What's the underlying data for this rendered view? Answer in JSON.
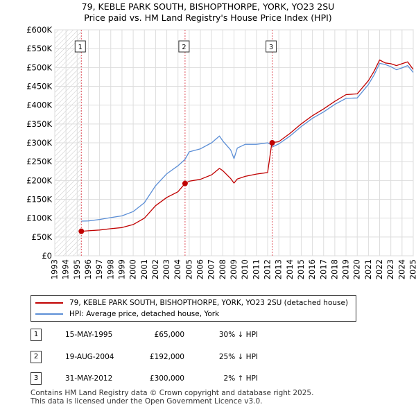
{
  "title_line1": "79, KEBLE PARK SOUTH, BISHOPTHORPE, YORK, YO23 2SU",
  "title_line2": "Price paid vs. HM Land Registry's House Price Index (HPI)",
  "colors": {
    "price_paid": "#c00000",
    "hpi": "#5b8ed6",
    "sale_marker": "#e0505a",
    "grid": "#dddddd"
  },
  "chart_data": {
    "type": "line",
    "title": "Price paid vs. HM Land Registry's House Price Index (HPI)",
    "xlabel": "",
    "ylabel": "",
    "xlim": [
      1993,
      2025
    ],
    "ylim": [
      0,
      600000
    ],
    "x_ticks": [
      1993,
      1994,
      1995,
      1996,
      1997,
      1998,
      1999,
      2000,
      2001,
      2002,
      2003,
      2004,
      2005,
      2006,
      2007,
      2008,
      2009,
      2010,
      2011,
      2012,
      2013,
      2014,
      2015,
      2016,
      2017,
      2018,
      2019,
      2020,
      2021,
      2022,
      2023,
      2024,
      2025
    ],
    "y_ticks": [
      0,
      50000,
      100000,
      150000,
      200000,
      250000,
      300000,
      350000,
      400000,
      450000,
      500000,
      550000,
      600000
    ],
    "y_tick_labels": [
      "£0",
      "£50K",
      "£100K",
      "£150K",
      "£200K",
      "£250K",
      "£300K",
      "£350K",
      "£400K",
      "£450K",
      "£500K",
      "£550K",
      "£600K"
    ],
    "hatched_region": [
      1993,
      1995.37
    ],
    "series": [
      {
        "name": "79, KEBLE PARK SOUTH, BISHOPTHORPE, YORK, YO23 2SU (detached house)",
        "x": [
          1995.37,
          1996,
          1997,
          1998,
          1999,
          2000,
          2001,
          2002,
          2003,
          2004,
          2004.63,
          2005,
          2006,
          2007,
          2007.7,
          2008,
          2008.7,
          2009,
          2009.3,
          2010,
          2011,
          2012,
          2012.38,
          2012.5,
          2013,
          2014,
          2015,
          2016,
          2017,
          2018,
          2019,
          2020,
          2021,
          2021.5,
          2022,
          2022.5,
          2023,
          2023.5,
          2024,
          2024.5,
          2025
        ],
        "values": [
          65000,
          66500,
          68500,
          72000,
          75000,
          83000,
          100000,
          133000,
          155000,
          170000,
          192000,
          198000,
          203000,
          215000,
          232000,
          226000,
          205000,
          193000,
          204000,
          211000,
          217000,
          221000,
          300000,
          301000,
          303000,
          325000,
          350000,
          372000,
          390000,
          410000,
          428000,
          430000,
          465000,
          490000,
          520000,
          512000,
          510000,
          505000,
          510000,
          515000,
          495000
        ]
      },
      {
        "name": "HPI: Average price, detached house, York",
        "x": [
          1995.37,
          1996,
          1997,
          1998,
          1999,
          2000,
          2001,
          2002,
          2003,
          2004,
          2004.63,
          2005,
          2006,
          2007,
          2007.7,
          2008,
          2008.7,
          2009,
          2009.3,
          2010,
          2011,
          2012,
          2012.38,
          2012.5,
          2013,
          2014,
          2015,
          2016,
          2017,
          2018,
          2019,
          2020,
          2021,
          2021.5,
          2022,
          2022.5,
          2023,
          2023.5,
          2024,
          2024.5,
          2025
        ],
        "values": [
          92000,
          92500,
          96500,
          101500,
          106000,
          117500,
          141000,
          186000,
          218000,
          239000,
          256000,
          276000,
          284000,
          300000,
          318000,
          305000,
          281000,
          258000,
          286000,
          296000,
          296000,
          300000,
          294000,
          290000,
          297000,
          318000,
          343000,
          365000,
          382000,
          402000,
          418000,
          419000,
          455000,
          480000,
          511000,
          508000,
          502000,
          494000,
          499000,
          505000,
          487000
        ]
      }
    ],
    "sales": [
      {
        "label": "1",
        "x": 1995.37,
        "value": 65000
      },
      {
        "label": "2",
        "x": 2004.63,
        "value": 192000
      },
      {
        "label": "3",
        "x": 2012.41,
        "value": 300000
      }
    ]
  },
  "legend": {
    "price_paid": "79, KEBLE PARK SOUTH, BISHOPTHORPE, YORK, YO23 2SU (detached house)",
    "hpi": "HPI: Average price, detached house, York"
  },
  "transactions": [
    {
      "num": "1",
      "date": "15-MAY-1995",
      "price": "£65,000",
      "hpi": "30% ↓ HPI"
    },
    {
      "num": "2",
      "date": "19-AUG-2004",
      "price": "£192,000",
      "hpi": "25% ↓ HPI"
    },
    {
      "num": "3",
      "date": "31-MAY-2012",
      "price": "£300,000",
      "hpi": "2% ↑ HPI"
    }
  ],
  "footer": {
    "line1": "Contains HM Land Registry data © Crown copyright and database right 2025.",
    "line2": "This data is licensed under the Open Government Licence v3.0."
  }
}
